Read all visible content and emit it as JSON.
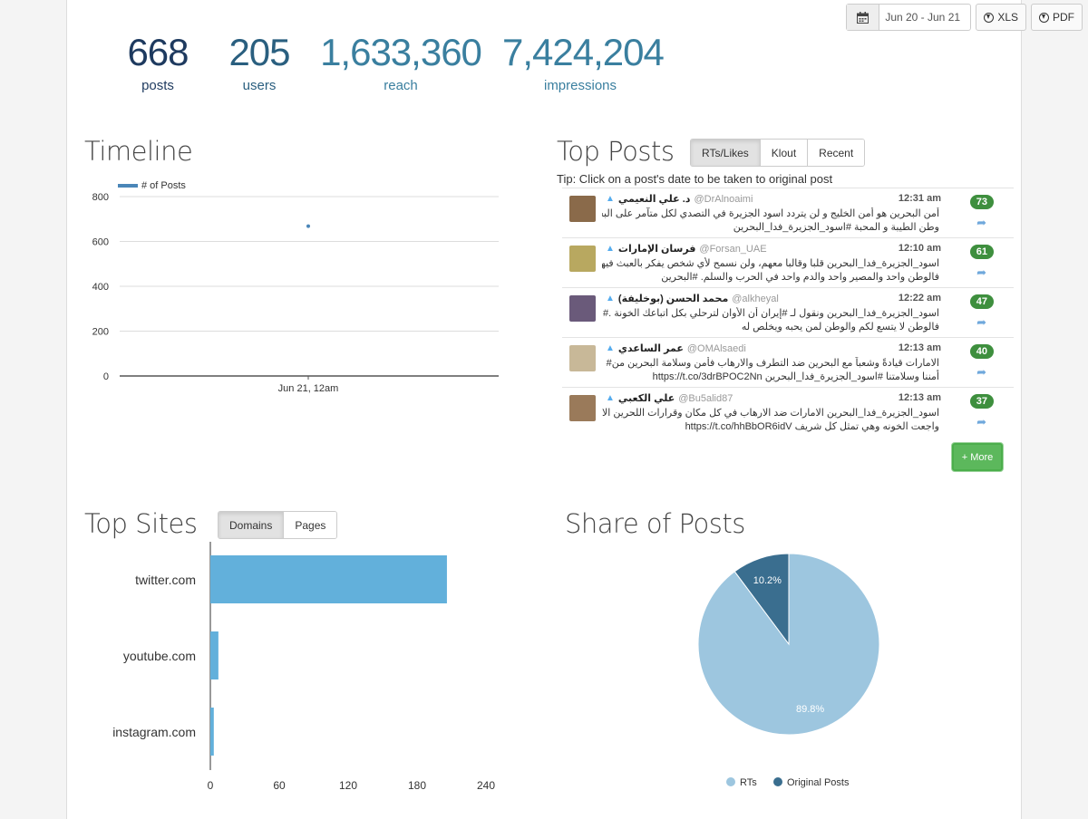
{
  "toolbar": {
    "date_range": "Jun 20 - Jun 21",
    "xls_label": "XLS",
    "pdf_label": "PDF"
  },
  "stats": [
    {
      "value": "668",
      "label": "posts",
      "color": "#1e3a5f"
    },
    {
      "value": "205",
      "label": "users",
      "color": "#2a5f7f"
    },
    {
      "value": "1,633,360",
      "label": "reach",
      "color": "#3a7f9f"
    },
    {
      "value": "7,424,204",
      "label": "impressions",
      "color": "#3a7f9f"
    }
  ],
  "timeline": {
    "title": "Timeline",
    "chart_data": {
      "type": "line",
      "title": "Timeline",
      "legend": [
        "# of Posts"
      ],
      "y_ticks": [
        0,
        200,
        400,
        600,
        800
      ],
      "ylim": [
        0,
        800
      ],
      "x_tick_label": "Jun 21, 12am",
      "series": [
        {
          "name": "# of Posts",
          "points": [
            {
              "x": "Jun 21, 12am",
              "y": 668
            }
          ]
        }
      ]
    }
  },
  "top_posts": {
    "title": "Top Posts",
    "tabs": [
      "RTs/Likes",
      "Klout",
      "Recent"
    ],
    "active_tab": 0,
    "tip": "Tip: Click on a post's date to be taken to original post",
    "more_label": "+ More",
    "posts": [
      {
        "name": "د. علي النعيمي",
        "handle": "@DrAlnoaimi",
        "time": "12:31 am",
        "count": "73",
        "line1": "أمن البحرين هو أمن الخليج و لن يتردد اسود الجزيرة في التصدي لكل متآمر على البحرين",
        "line2": "وطن الطيبة و المحبة #اسود_الجزيرة_فدا_البحرين",
        "avatar_color": "#8a6a4a"
      },
      {
        "name": "فرسان الإمارات",
        "handle": "@Forsan_UAE",
        "time": "12:10 am",
        "count": "61",
        "line1": "اسود_الجزيرة_فدا_البحرين قلبا وقالبا معهم، ولن نسمح لأي شخص يفكر بالعبث فيها،#",
        "line2": "فالوطن واحد والمصير واحد والدم واحد في الحرب والسلم. #البحرين",
        "avatar_color": "#b8a860"
      },
      {
        "name": "محمد الحسن (بوخليفة)",
        "handle": "@alkheyal",
        "time": "12:22 am",
        "count": "47",
        "line1": "اسود_الجزيرة_فدا_البحرين ونقول لـ #إيران أن الأوان لترحلي بكل اتباعك الخونة .#",
        "line2": "فالوطن لا يتسع لكم والوطن لمن يحبه ويخلص له",
        "avatar_color": "#6a5a7a"
      },
      {
        "name": "عمر الساعدي",
        "handle": "@OMAlsaedi",
        "time": "12:13 am",
        "count": "40",
        "line1": "الامارات قيادةً وشعباً مع البحرين ضد التطرف والارهاب فأمن وسلامة البحرين من#",
        "line2": "أمننا وسلامتنا #اسود_الجزيرة_فدا_البحرين https://t.co/3drBPOC2Nn",
        "avatar_color": "#c8b898"
      },
      {
        "name": "علي الكعبي",
        "handle": "@Bu5alid87",
        "time": "12:13 am",
        "count": "37",
        "line1": "اسود_الجزيرة_فدا_البحرين الامارات ضد الارهاب في كل مكان وقرارات اللحرين الاخيره#",
        "line2": "واجعت الخونه وهي تمثل كل شريف https://t.co/hhBbOR6idV",
        "avatar_color": "#9a7a5a"
      }
    ]
  },
  "top_sites": {
    "title": "Top Sites",
    "tabs": [
      "Domains",
      "Pages"
    ],
    "active_tab": 0,
    "chart_data": {
      "type": "bar",
      "orientation": "horizontal",
      "categories": [
        "twitter.com",
        "youtube.com",
        "instagram.com"
      ],
      "values": [
        206,
        7,
        3
      ],
      "x_ticks": [
        0,
        60,
        120,
        180,
        240
      ],
      "xlim": [
        0,
        240
      ],
      "color": "#62b0db"
    }
  },
  "share": {
    "title": "Share of Posts",
    "chart_data": {
      "type": "pie",
      "labels": [
        "RTs",
        "Original Posts"
      ],
      "values": [
        89.8,
        10.2
      ],
      "value_labels": [
        "89.8%",
        "10.2%"
      ],
      "colors": [
        "#9dc6df",
        "#3a6e8f"
      ],
      "legend_position": "bottom"
    }
  }
}
